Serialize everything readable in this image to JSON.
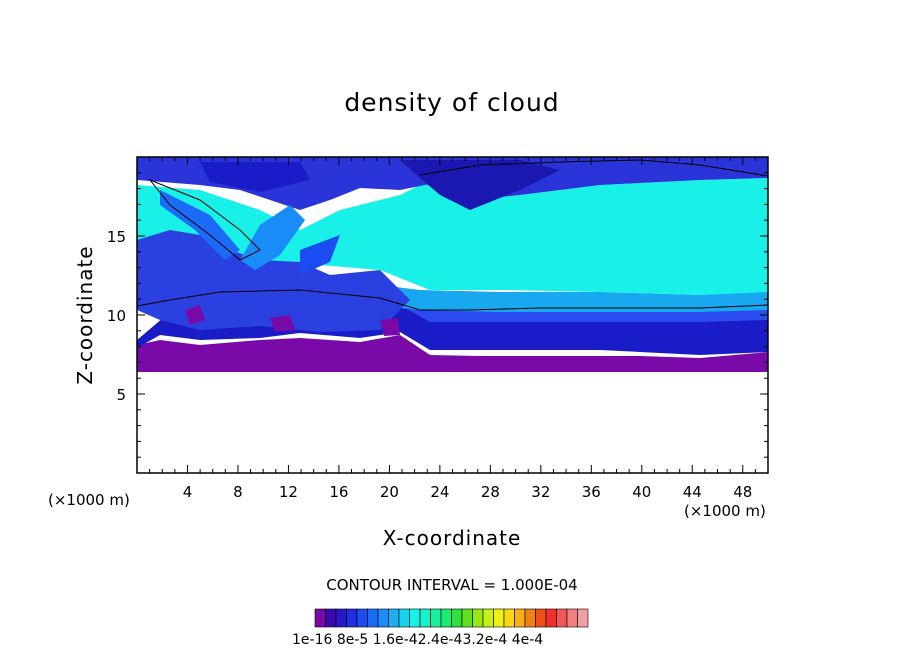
{
  "chart_data": {
    "type": "heatmap",
    "title": "density of cloud",
    "xlabel": "X-coordinate",
    "ylabel": "Z-coordinate",
    "x_units": "(×1000 m)",
    "x_units_right": "(×1000 m)",
    "xlim": [
      0,
      50
    ],
    "ylim": [
      0,
      20
    ],
    "x_ticks": [
      4,
      8,
      12,
      16,
      20,
      24,
      28,
      32,
      36,
      40,
      44,
      48
    ],
    "y_ticks": [
      5,
      10,
      15
    ],
    "contour_interval_text": "CONTOUR INTERVAL = 1.000E-04",
    "colorbar_labels": [
      "1e-16",
      "8e-5",
      "1.6e-4",
      "2.4e-4",
      "3.2e-4",
      "4e-4"
    ],
    "colorbar_label_text": "1e-16 8e-5 1.6e-42.4e-43.2e-4 4e-4",
    "colorbar_colors": [
      "#7a0aa8",
      "#3a0ab0",
      "#2a18c8",
      "#1e2ee0",
      "#1a4cf0",
      "#1a6cf8",
      "#1a8cf8",
      "#18b0f0",
      "#14d4f0",
      "#18f0e8",
      "#18f0c8",
      "#18f0a0",
      "#1aec70",
      "#30e040",
      "#60e020",
      "#98e818",
      "#c8f018",
      "#f0f018",
      "#f8d818",
      "#f8b018",
      "#f08018",
      "#f05018",
      "#f03030",
      "#f05858",
      "#f08080",
      "#f0a0a0"
    ],
    "grid": false
  }
}
